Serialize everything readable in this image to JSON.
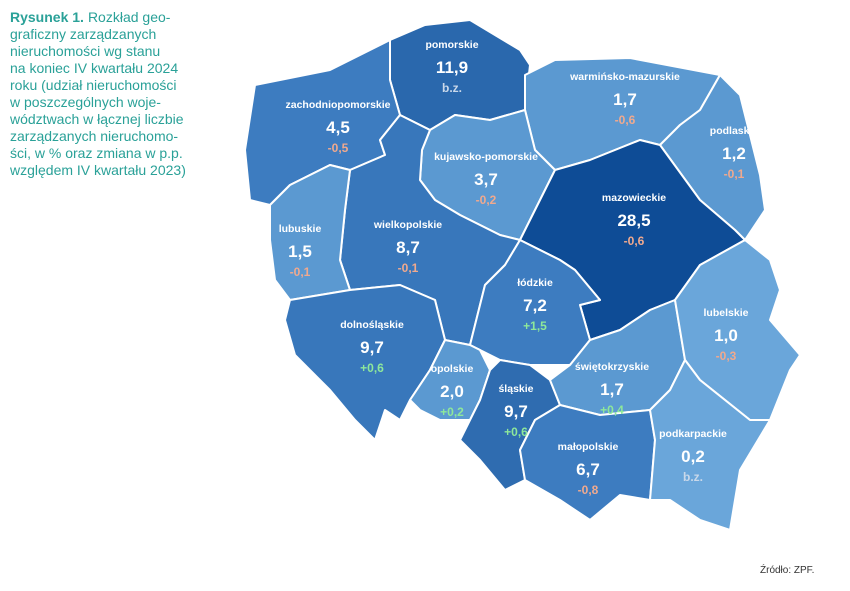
{
  "caption": {
    "label": "Rysunek 1.",
    "lines": [
      "Rozkład geo-",
      "graficzny zarządzanych",
      "nieruchomości wg stanu",
      "na koniec IV kwartału 2024",
      "roku (udział nieruchomości",
      "w poszczególnych woje-",
      "wództwach w łącznej liczbie",
      "zarządzanych nieruchomo-",
      "ści, w % oraz zmiana w p.p.",
      "względem IV kwartału 2023)"
    ]
  },
  "regions": [
    {
      "name": "pomorskie",
      "value": "11,9",
      "change": "b.z.",
      "color": "#2a68ad",
      "change_color": "#c9d8ea"
    },
    {
      "name": "zachodniopomorskie",
      "value": "4,5",
      "change": "-0,5",
      "color": "#3d7cc0",
      "change_color": "#f0a98e"
    },
    {
      "name": "warmińsko-mazurskie",
      "value": "1,7",
      "change": "-0,6",
      "color": "#5b99d1",
      "change_color": "#f0a98e"
    },
    {
      "name": "podlaskie",
      "value": "1,2",
      "change": "-0,1",
      "color": "#5b99d1",
      "change_color": "#f0a98e"
    },
    {
      "name": "kujawsko-pomorskie",
      "value": "3,7",
      "change": "-0,2",
      "color": "#5b99d1",
      "change_color": "#f0a98e"
    },
    {
      "name": "wielkopolskie",
      "value": "8,7",
      "change": "-0,1",
      "color": "#3877bb",
      "change_color": "#f0a98e"
    },
    {
      "name": "lubuskie",
      "value": "1,5",
      "change": "-0,1",
      "color": "#5b99d1",
      "change_color": "#f0a98e"
    },
    {
      "name": "mazowieckie",
      "value": "28,5",
      "change": "-0,6",
      "color": "#0e4c96",
      "change_color": "#f0a98e"
    },
    {
      "name": "łódzkie",
      "value": "7,2",
      "change": "+1,5",
      "color": "#3d7cc0",
      "change_color": "#8ee89a"
    },
    {
      "name": "dolnośląskie",
      "value": "9,7",
      "change": "+0,6",
      "color": "#3877bb",
      "change_color": "#8ee89a"
    },
    {
      "name": "opolskie",
      "value": "2,0",
      "change": "+0,2",
      "color": "#5b99d1",
      "change_color": "#8ee89a"
    },
    {
      "name": "śląskie",
      "value": "9,7",
      "change": "+0,6",
      "color": "#2f6cb0",
      "change_color": "#8ee89a"
    },
    {
      "name": "świętokrzyskie",
      "value": "1,7",
      "change": "+0,4",
      "color": "#5b99d1",
      "change_color": "#8ee89a"
    },
    {
      "name": "lubelskie",
      "value": "1,0",
      "change": "-0,3",
      "color": "#6aa6da",
      "change_color": "#f0a98e"
    },
    {
      "name": "małopolskie",
      "value": "6,7",
      "change": "-0,8",
      "color": "#3d7cc0",
      "change_color": "#f0a98e"
    },
    {
      "name": "podkarpackie",
      "value": "0,2",
      "change": "b.z.",
      "color": "#6aa6da",
      "change_color": "#c9d8ea"
    }
  ],
  "source": "Źródło: ZPF."
}
